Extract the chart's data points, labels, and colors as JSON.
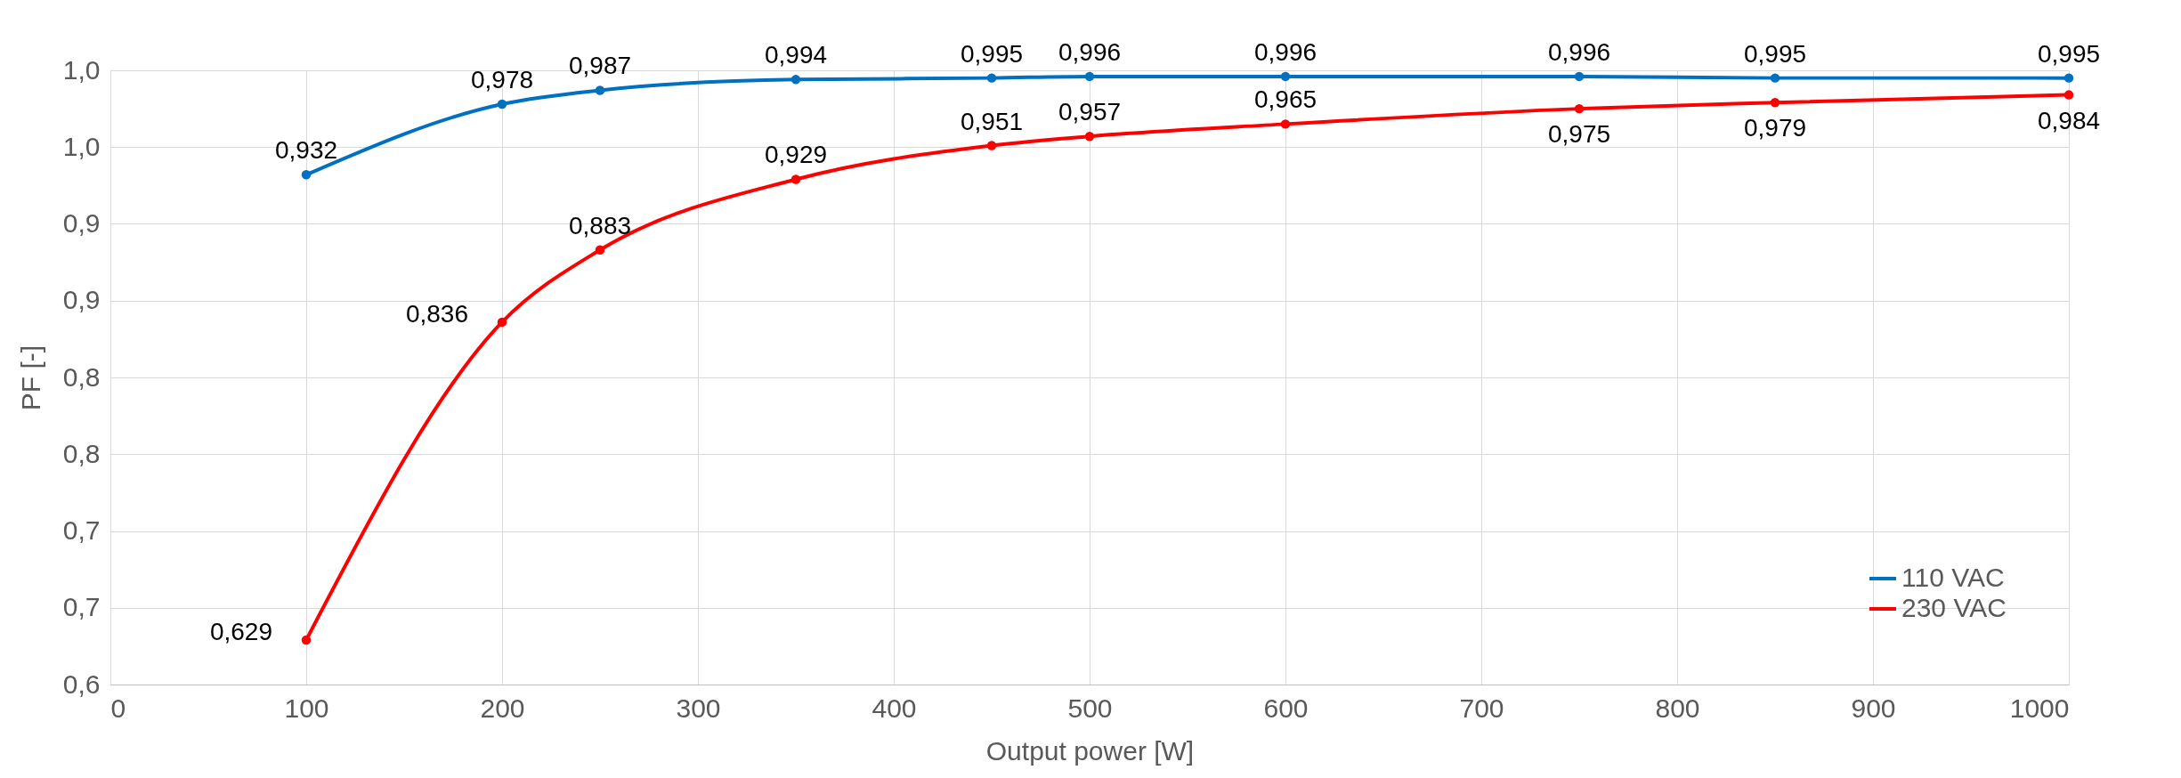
{
  "chart_data": {
    "type": "line",
    "xlabel": "Output power [W]",
    "ylabel": "PF [-]",
    "x": [
      100,
      200,
      250,
      350,
      450,
      500,
      600,
      750,
      850,
      1000
    ],
    "series": [
      {
        "name": "110 VAC",
        "color": "#0070c0",
        "values": [
          0.932,
          0.978,
          0.987,
          0.994,
          0.995,
          0.996,
          0.996,
          0.996,
          0.995,
          0.995
        ],
        "value_labels": [
          "0,932",
          "0,978",
          "0,987",
          "0,994",
          "0,995",
          "0,996",
          "0,996",
          "0,996",
          "0,995",
          "0,995"
        ]
      },
      {
        "name": "230 VAC",
        "color": "#ff0000",
        "values": [
          0.629,
          0.836,
          0.883,
          0.929,
          0.951,
          0.957,
          0.965,
          0.975,
          0.979,
          0.984
        ],
        "value_labels": [
          "0,629",
          "0,836",
          "0,883",
          "0,929",
          "0,951",
          "0,957",
          "0,965",
          "0,975",
          "0,979",
          "0,984"
        ]
      }
    ],
    "xlim": [
      0,
      1000
    ],
    "xticks": [
      0,
      100,
      200,
      300,
      400,
      500,
      600,
      700,
      800,
      900,
      1000
    ],
    "ylim": [
      0.6,
      1.0
    ],
    "yticks": [
      {
        "value": 0.6,
        "label": "0,6"
      },
      {
        "value": 0.65,
        "label": "0,7"
      },
      {
        "value": 0.7,
        "label": "0,7"
      },
      {
        "value": 0.75,
        "label": "0,8"
      },
      {
        "value": 0.8,
        "label": "0,8"
      },
      {
        "value": 0.85,
        "label": "0,9"
      },
      {
        "value": 0.9,
        "label": "0,9"
      },
      {
        "value": 0.95,
        "label": "1,0"
      },
      {
        "value": 1.0,
        "label": "1,0"
      }
    ],
    "grid": true,
    "legend": "bottom right",
    "marker": "circle",
    "line_style": "solid"
  }
}
